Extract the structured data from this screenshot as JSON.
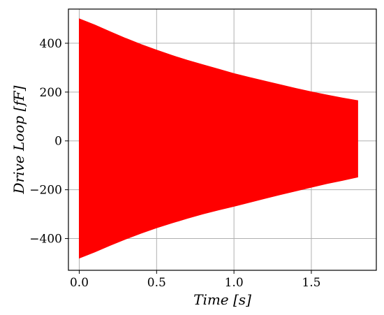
{
  "chart_data": {
    "type": "area",
    "xlabel": "Time [s]",
    "ylabel": "Drive Loop [fF]",
    "xlim": [
      -0.07,
      1.92
    ],
    "ylim": [
      -530,
      540
    ],
    "xticks": [
      0.0,
      0.5,
      1.0,
      1.5
    ],
    "xtick_labels": [
      "0.0",
      "0.5",
      "1.0",
      "1.5"
    ],
    "yticks": [
      -400,
      -200,
      0,
      200,
      400
    ],
    "ytick_labels": [
      "−400",
      "−200",
      "0",
      "200",
      "400"
    ],
    "grid": true,
    "series": [
      {
        "color": "#ff0000",
        "style": "filled oscillation envelope",
        "x": [
          0.0,
          0.1,
          0.2,
          0.3,
          0.4,
          0.5,
          0.6,
          0.7,
          0.8,
          0.9,
          1.0,
          1.1,
          1.2,
          1.3,
          1.4,
          1.5,
          1.6,
          1.7,
          1.8
        ],
        "upper": [
          500,
          475,
          447,
          420,
          395,
          372,
          350,
          330,
          312,
          294,
          276,
          260,
          245,
          230,
          215,
          201,
          188,
          176,
          165
        ],
        "lower": [
          -480,
          -455,
          -428,
          -402,
          -378,
          -356,
          -336,
          -317,
          -299,
          -283,
          -268,
          -252,
          -236,
          -220,
          -205,
          -190,
          -175,
          -162,
          -148
        ]
      }
    ]
  }
}
